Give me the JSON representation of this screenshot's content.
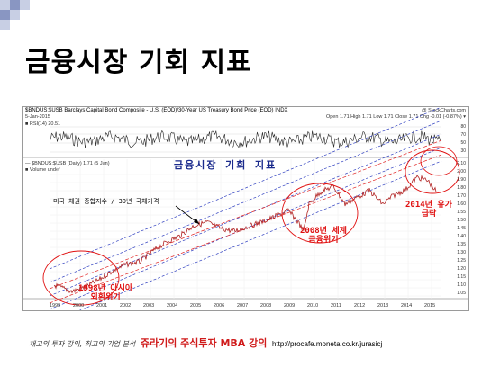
{
  "slide": {
    "title": "금융시장 기회 지표"
  },
  "chart": {
    "header_line1": "$BNDUS:$USB Barclays Capital Bond Composite - U.S. (EOD)/30-Year US Treasury Bond Price (EOD) INDX",
    "header_right": "@ StockCharts.com",
    "header_date": "5-Jan-2015",
    "header_quote": "Open 1.71  High 1.71  Low 1.71  Close 1.71  Chg -0.01 (-0.87%) ▾",
    "rsi_label": "■ RSI(14) 20.51",
    "price_label": "— $BNDUS:$USB (Daily) 1.71 (5 Jan)",
    "volume_label": "■ Volume undef",
    "overlay_title": "금융시장 기회 지표",
    "annotation_bond": "미국 채권 종합지수 / 30년 국채가격",
    "annotation_1998": "1998년 아시아\n외환위기",
    "annotation_2008": "2008년 세계\n금융위기",
    "annotation_2014": "2014년 유가\n급락",
    "rsi_ticks": [
      "80",
      "70",
      "50",
      "30"
    ],
    "price_ticks": [
      "2.10",
      "2.00",
      "1.90",
      "1.80",
      "1.70",
      "1.60",
      "1.55",
      "1.50",
      "1.45",
      "1.40",
      "1.35",
      "1.30",
      "1.25",
      "1.20",
      "1.15",
      "1.10",
      "1.05"
    ],
    "x_ticks": [
      "1999",
      "2000",
      "2001",
      "2002",
      "2003",
      "2004",
      "2005",
      "2006",
      "2007",
      "2008",
      "2009",
      "2010",
      "2011",
      "2012",
      "2013",
      "2014",
      "2015"
    ]
  },
  "footer": {
    "left_text": "채고의 투자 강의, 최고의 기업 분석",
    "center_text": "쥬라기의 주식투자 MBA 강의",
    "url_text": "http://procafe.moneta.co.kr/jurasicj"
  },
  "colors": {
    "corner_deco": "#9aa6c8",
    "overlay_title": "#1a2a8c",
    "annotation_red": "#e01010",
    "price_line": "#c0392b",
    "channel_line": "#3040c0"
  }
}
